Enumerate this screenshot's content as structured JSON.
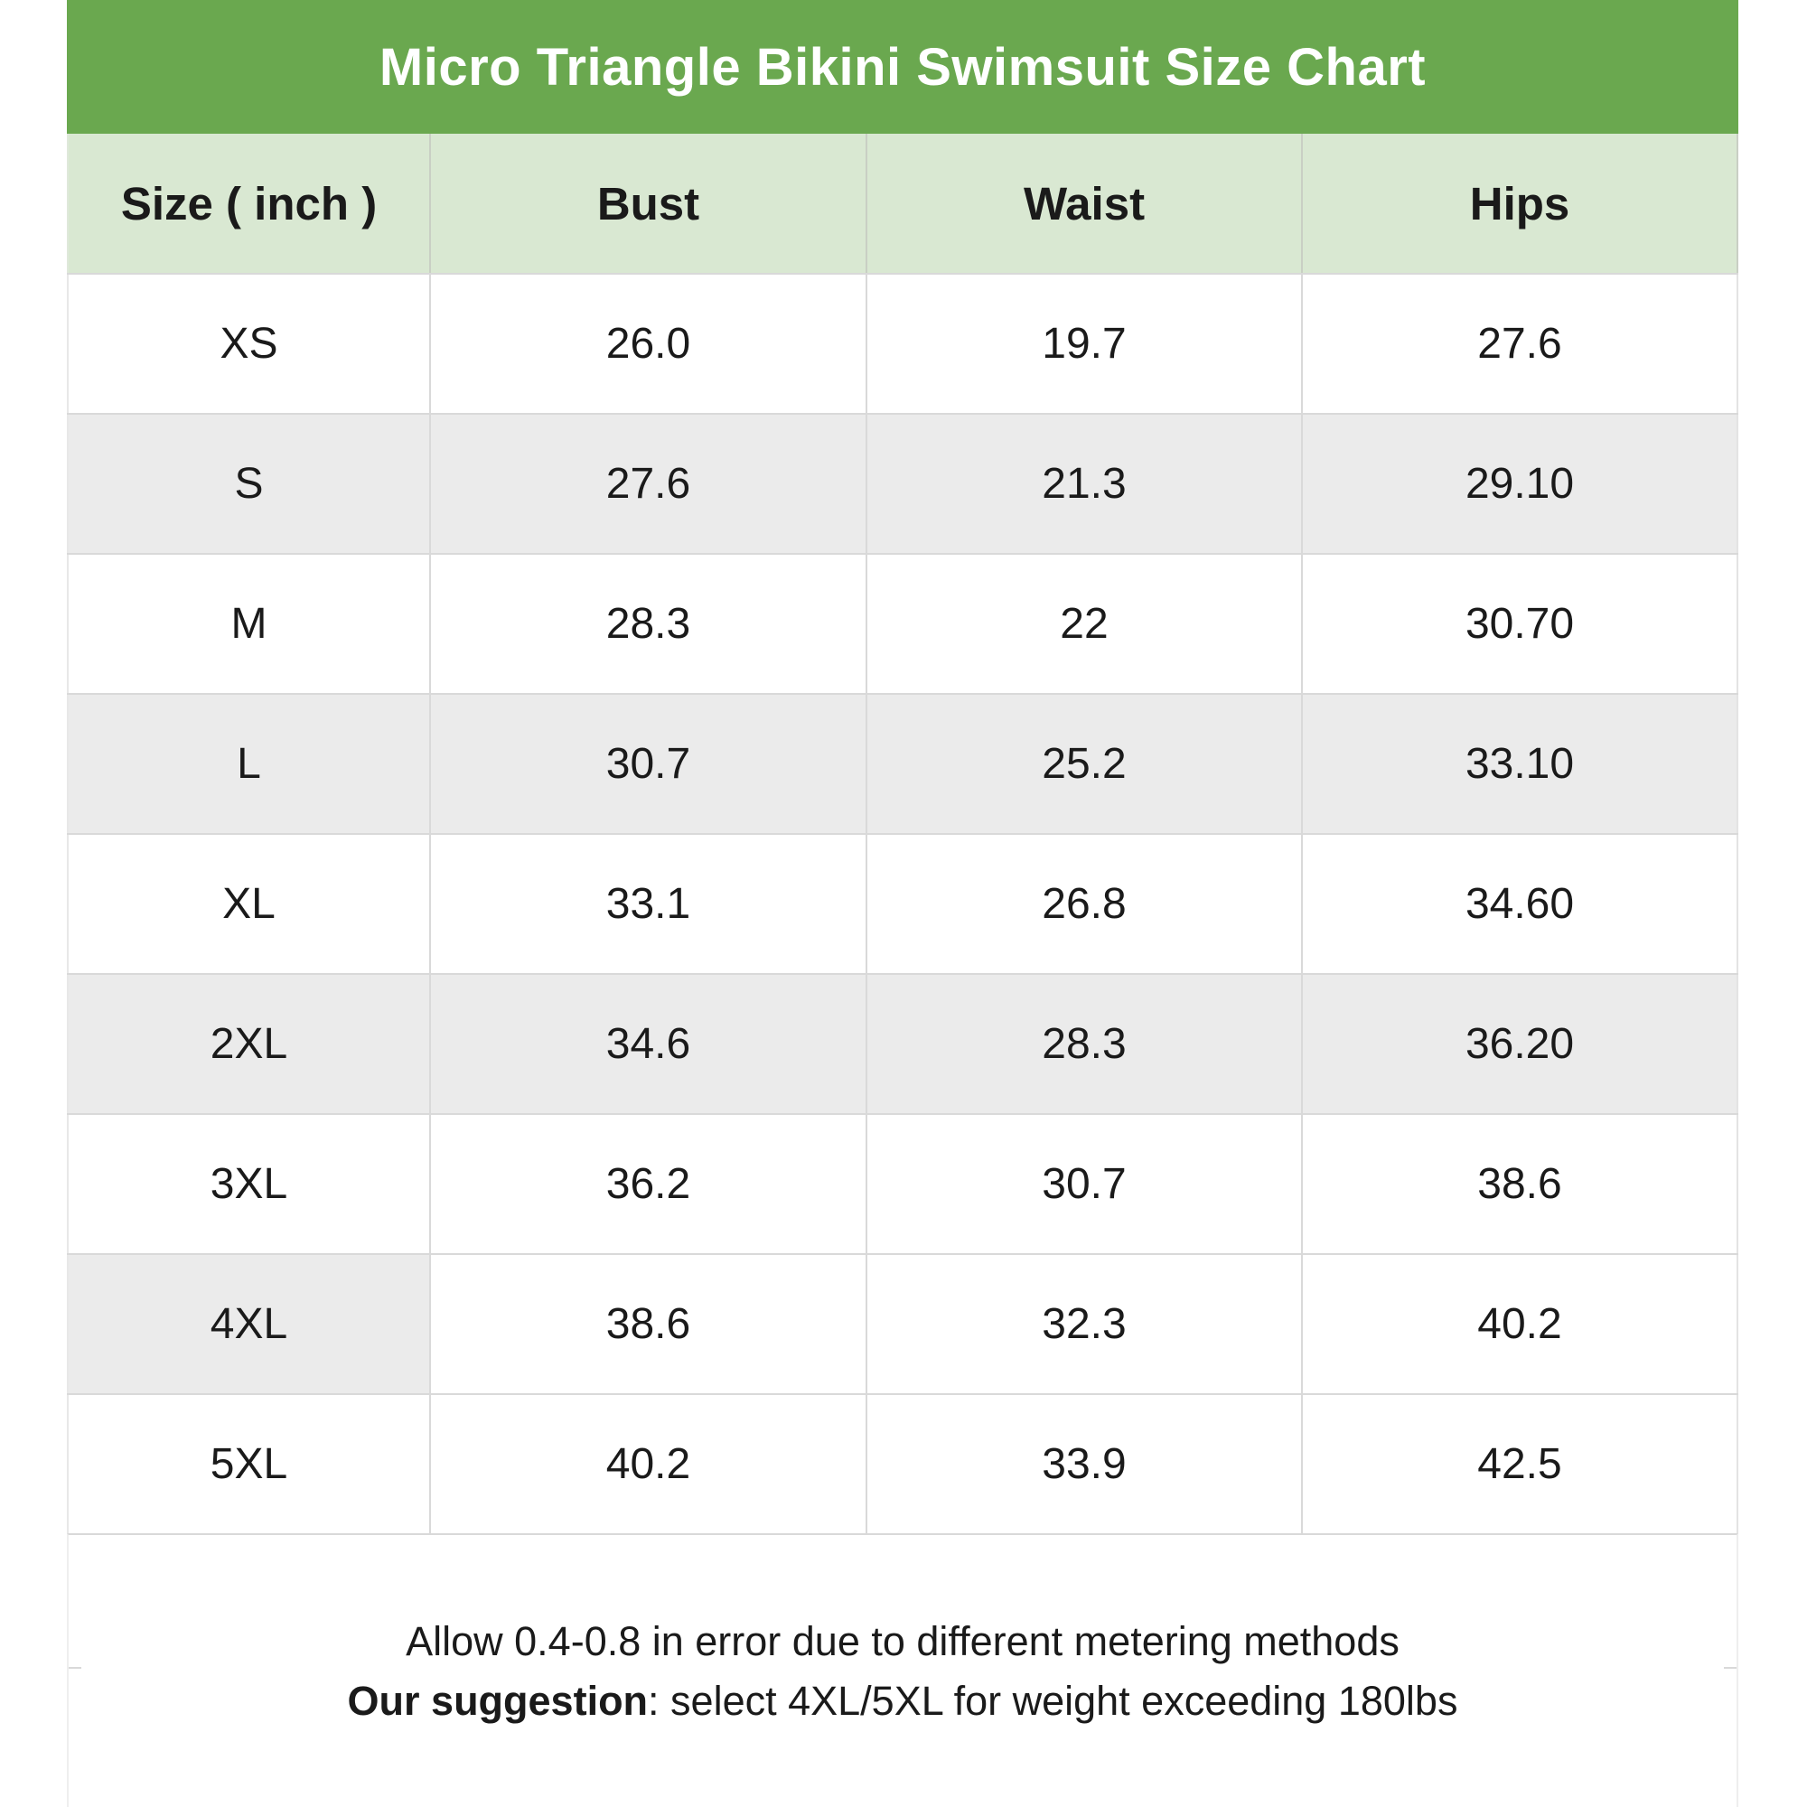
{
  "title": "Micro Triangle Bikini Swimsuit Size Chart",
  "colors": {
    "title_bar_bg": "#6aa84f",
    "title_text": "#ffffff",
    "header_row_bg": "#d9e8d2",
    "stripe_row_bg": "#ebebeb",
    "border": "#d9d9d9",
    "text": "#1a1a1a"
  },
  "chart_data": {
    "type": "table",
    "title": "Micro Triangle Bikini Swimsuit Size Chart",
    "unit": "inch",
    "columns": [
      "Size ( inch )",
      "Bust",
      "Waist",
      "Hips"
    ],
    "rows": [
      {
        "size": "XS",
        "bust": "26.0",
        "waist": "19.7",
        "hips": "27.6",
        "size_shaded": false,
        "data_shaded": false
      },
      {
        "size": "S",
        "bust": "27.6",
        "waist": "21.3",
        "hips": "29.10",
        "size_shaded": true,
        "data_shaded": true
      },
      {
        "size": "M",
        "bust": "28.3",
        "waist": "22",
        "hips": "30.70",
        "size_shaded": false,
        "data_shaded": false
      },
      {
        "size": "L",
        "bust": "30.7",
        "waist": "25.2",
        "hips": "33.10",
        "size_shaded": true,
        "data_shaded": true
      },
      {
        "size": "XL",
        "bust": "33.1",
        "waist": "26.8",
        "hips": "34.60",
        "size_shaded": false,
        "data_shaded": false
      },
      {
        "size": "2XL",
        "bust": "34.6",
        "waist": "28.3",
        "hips": "36.20",
        "size_shaded": true,
        "data_shaded": true
      },
      {
        "size": "3XL",
        "bust": "36.2",
        "waist": "30.7",
        "hips": "38.6",
        "size_shaded": false,
        "data_shaded": false
      },
      {
        "size": "4XL",
        "bust": "38.6",
        "waist": "32.3",
        "hips": "40.2",
        "size_shaded": true,
        "data_shaded": false
      },
      {
        "size": "5XL",
        "bust": "40.2",
        "waist": "33.9",
        "hips": "42.5",
        "size_shaded": false,
        "data_shaded": false
      }
    ]
  },
  "footer": {
    "line1": "Allow 0.4-0.8 in error due to different metering methods",
    "line2_bold": "Our suggestion",
    "line2_rest": ": select 4XL/5XL for weight exceeding 180lbs"
  }
}
